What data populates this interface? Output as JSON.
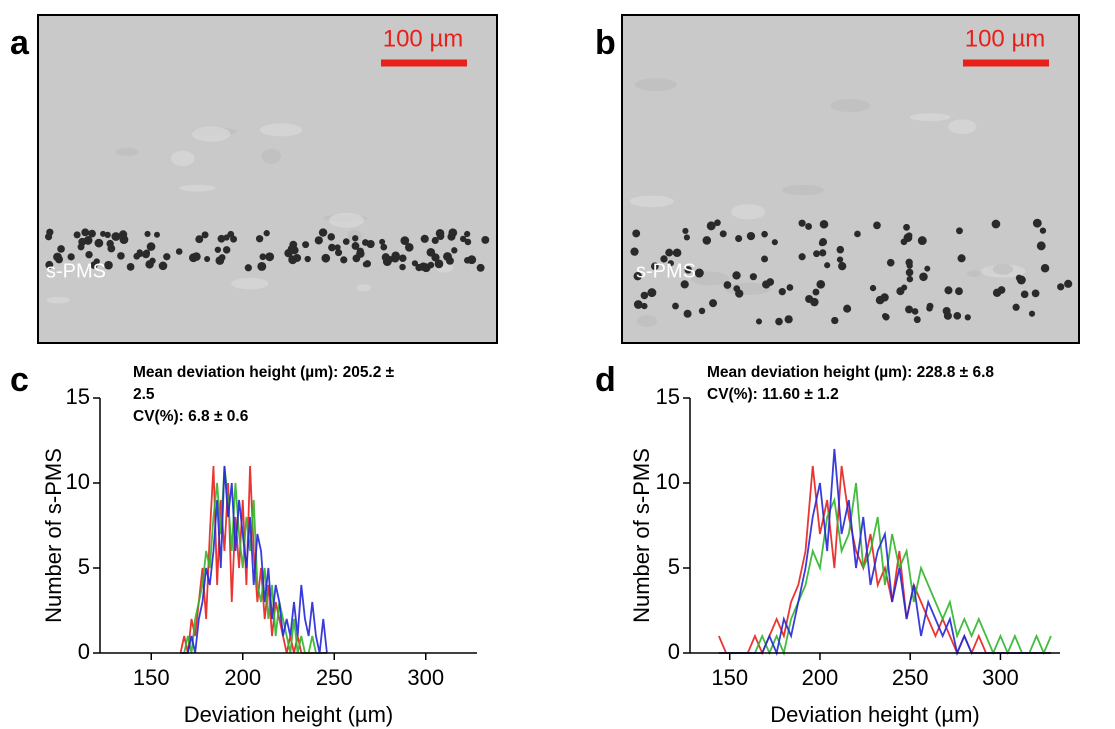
{
  "panels": [
    {
      "label": "a",
      "scale_bar": "100 µm",
      "particle_label": "s-PMS"
    },
    {
      "label": "b",
      "scale_bar": "100 µm",
      "particle_label": "s-PMS"
    }
  ],
  "chart_data": [
    {
      "type": "line",
      "panel_label": "c",
      "annotation_lines": [
        "Mean deviation height (µm): 205.2 ± 2.5",
        "CV(%): 6.8 ± 0.6"
      ],
      "xlabel": "Deviation height (µm)",
      "ylabel": "Number of s-PMS",
      "xlim": [
        122,
        328
      ],
      "ylim": [
        0,
        15
      ],
      "xticks": [
        150,
        200,
        250,
        300
      ],
      "yticks": [
        0,
        5,
        10,
        15
      ],
      "x": [
        166,
        168,
        170,
        172,
        174,
        176,
        178,
        180,
        182,
        184,
        186,
        188,
        190,
        192,
        194,
        196,
        198,
        200,
        202,
        204,
        206,
        208,
        210,
        212,
        214,
        216,
        218,
        220,
        222,
        224,
        226,
        228,
        230,
        232,
        234,
        236,
        238,
        240,
        242,
        244,
        246
      ],
      "series": [
        {
          "color": "#e8201c",
          "values": [
            0,
            1,
            0,
            2,
            1,
            3,
            5,
            2,
            7,
            11,
            4,
            9,
            6,
            10,
            3,
            8,
            5,
            9,
            4,
            11,
            6,
            3,
            5,
            2,
            4,
            1,
            3,
            2,
            1,
            0,
            1,
            0,
            1,
            0,
            0,
            0,
            0,
            0,
            0,
            0,
            0
          ]
        },
        {
          "color": "#2fb52a",
          "values": [
            0,
            0,
            1,
            0,
            2,
            3,
            4,
            6,
            5,
            8,
            10,
            7,
            11,
            9,
            6,
            10,
            7,
            5,
            8,
            6,
            9,
            4,
            3,
            5,
            2,
            4,
            1,
            3,
            2,
            1,
            0,
            2,
            0,
            1,
            0,
            0,
            1,
            0,
            0,
            0,
            0
          ]
        },
        {
          "color": "#2327d8",
          "values": [
            0,
            0,
            0,
            1,
            0,
            2,
            3,
            5,
            4,
            6,
            9,
            5,
            11,
            8,
            10,
            6,
            9,
            7,
            5,
            8,
            4,
            7,
            6,
            3,
            5,
            2,
            4,
            3,
            1,
            2,
            1,
            3,
            1,
            4,
            2,
            1,
            3,
            1,
            0,
            2,
            0
          ]
        }
      ]
    },
    {
      "type": "line",
      "panel_label": "d",
      "annotation_lines": [
        "Mean deviation height (µm): 228.8 ± 6.8",
        "CV(%): 11.60 ± 1.2"
      ],
      "xlabel": "Deviation height (µm)",
      "ylabel": "Number of s-PMS",
      "xlim": [
        128,
        333
      ],
      "ylim": [
        0,
        15
      ],
      "xticks": [
        150,
        200,
        250,
        300
      ],
      "yticks": [
        0,
        5,
        10,
        15
      ],
      "x": [
        144,
        148,
        152,
        156,
        160,
        164,
        168,
        172,
        176,
        180,
        184,
        188,
        192,
        196,
        200,
        204,
        208,
        212,
        216,
        220,
        224,
        228,
        232,
        236,
        240,
        244,
        248,
        252,
        256,
        260,
        264,
        268,
        272,
        276,
        280,
        284,
        288,
        292,
        296,
        300,
        304,
        308,
        312,
        316,
        320,
        324,
        328
      ],
      "series": [
        {
          "color": "#e8201c",
          "values": [
            1,
            0,
            0,
            0,
            0,
            1,
            0,
            1,
            2,
            1,
            3,
            4,
            6,
            11,
            7,
            9,
            5,
            11,
            8,
            6,
            5,
            7,
            4,
            5,
            3,
            6,
            2,
            4,
            3,
            2,
            1,
            2,
            1,
            0,
            1,
            0,
            1,
            0,
            0,
            0,
            0,
            0,
            0,
            0,
            0,
            0,
            0
          ]
        },
        {
          "color": "#2fb52a",
          "values": [
            0,
            0,
            0,
            0,
            0,
            0,
            1,
            0,
            1,
            0,
            2,
            3,
            4,
            6,
            5,
            8,
            9,
            6,
            7,
            10,
            5,
            6,
            8,
            4,
            7,
            5,
            6,
            3,
            5,
            4,
            3,
            2,
            3,
            1,
            2,
            1,
            2,
            1,
            0,
            1,
            0,
            1,
            0,
            0,
            1,
            0,
            1
          ]
        },
        {
          "color": "#2327d8",
          "values": [
            0,
            0,
            0,
            0,
            0,
            0,
            0,
            1,
            0,
            2,
            1,
            3,
            5,
            8,
            10,
            6,
            12,
            7,
            9,
            5,
            8,
            4,
            6,
            7,
            3,
            5,
            2,
            4,
            1,
            3,
            2,
            1,
            2,
            0,
            1,
            0,
            0,
            0,
            0,
            0,
            0,
            0,
            0,
            0,
            0,
            0,
            0
          ]
        }
      ]
    }
  ]
}
